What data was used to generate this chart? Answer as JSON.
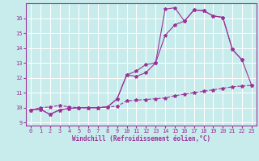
{
  "xlabel": "Windchill (Refroidissement éolien,°C)",
  "bg_color": "#c8ecec",
  "line_color": "#993399",
  "grid_color": "#ffffff",
  "xlim": [
    -0.5,
    23.5
  ],
  "ylim": [
    8.8,
    17.0
  ],
  "yticks": [
    9,
    10,
    11,
    12,
    13,
    14,
    15,
    16
  ],
  "xticks": [
    0,
    1,
    2,
    3,
    4,
    5,
    6,
    7,
    8,
    9,
    10,
    11,
    12,
    13,
    14,
    15,
    16,
    17,
    18,
    19,
    20,
    21,
    22,
    23
  ],
  "line1_x": [
    0,
    1,
    2,
    3,
    4,
    5,
    6,
    7,
    8,
    9,
    10,
    11,
    12,
    13,
    14,
    15,
    16,
    17,
    18,
    19,
    20,
    21,
    22,
    23
  ],
  "line1_y": [
    9.85,
    10.0,
    10.05,
    10.15,
    10.05,
    10.0,
    10.0,
    10.0,
    10.05,
    10.1,
    10.45,
    10.5,
    10.55,
    10.6,
    10.65,
    10.8,
    10.9,
    11.0,
    11.1,
    11.2,
    11.3,
    11.4,
    11.45,
    11.5
  ],
  "line2_x": [
    0,
    1,
    2,
    3,
    4,
    5,
    6,
    7,
    8,
    9,
    10,
    11,
    12,
    13,
    14,
    15,
    16,
    17,
    18,
    19,
    20,
    21,
    22
  ],
  "line2_y": [
    9.85,
    9.9,
    9.55,
    9.85,
    9.95,
    10.0,
    10.0,
    10.0,
    10.05,
    10.6,
    12.2,
    12.45,
    12.9,
    13.0,
    16.6,
    16.7,
    15.8,
    16.55,
    16.5,
    16.15,
    16.05,
    13.9,
    13.2
  ],
  "line3_x": [
    0,
    1,
    2,
    3,
    4,
    5,
    6,
    7,
    8,
    9,
    10,
    11,
    12,
    13,
    14,
    15,
    16,
    17,
    18,
    19,
    20,
    21,
    22,
    23
  ],
  "line3_y": [
    9.85,
    9.9,
    9.55,
    9.85,
    9.95,
    10.0,
    10.0,
    10.0,
    10.05,
    10.6,
    12.2,
    12.1,
    12.35,
    13.0,
    14.85,
    15.55,
    15.8,
    16.55,
    16.5,
    16.15,
    16.05,
    13.9,
    13.2,
    11.5
  ],
  "marker": "*",
  "markersize": 3,
  "linewidth": 0.8,
  "tick_fontsize": 5,
  "xlabel_fontsize": 5.5
}
